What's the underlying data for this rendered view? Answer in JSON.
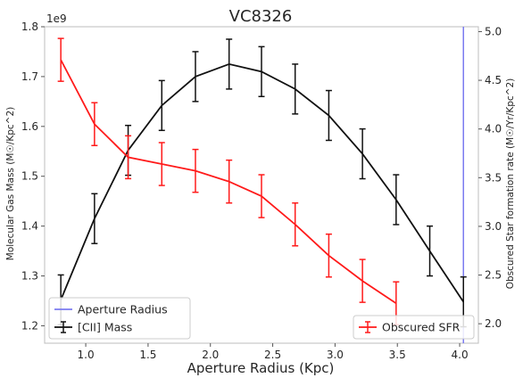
{
  "chart_data": {
    "type": "line",
    "title": "VC8326",
    "xlabel": "Aperture Radius (Kpc)",
    "ylabel_left": "Molecular Gas Mass (M☉/Kpc^2)",
    "ylabel_right": "Obscured Star formation rate (M☉/Yr/Kpc^2)",
    "offset_text": "1e9",
    "xlim": [
      0.67,
      4.15
    ],
    "ylim_left": [
      1.165,
      1.8
    ],
    "ylim_right": [
      1.8,
      5.05
    ],
    "grid": false,
    "x_ticks": [
      1.0,
      1.5,
      2.0,
      2.5,
      3.0,
      3.5,
      4.0
    ],
    "x_tick_labels": [
      "1.0",
      "1.5",
      "2.0",
      "2.5",
      "3.0",
      "3.5",
      "4.0"
    ],
    "y_left_ticks": [
      1.2,
      1.3,
      1.4,
      1.5,
      1.6,
      1.7,
      1.8
    ],
    "y_left_tick_labels": [
      "1.2",
      "1.3",
      "1.4",
      "1.5",
      "1.6",
      "1.7",
      "1.8"
    ],
    "y_right_ticks": [
      2.0,
      2.5,
      3.0,
      3.5,
      4.0,
      4.5,
      5.0
    ],
    "y_right_tick_labels": [
      "2.0",
      "2.5",
      "3.0",
      "3.5",
      "4.0",
      "4.5",
      "5.0"
    ],
    "series": [
      {
        "name": "[CII] Mass",
        "axis": "left",
        "color": "#111111",
        "x": [
          0.8,
          1.07,
          1.34,
          1.61,
          1.88,
          2.15,
          2.41,
          2.68,
          2.95,
          3.22,
          3.49,
          3.76,
          4.03
        ],
        "y": [
          1.252,
          1.415,
          1.552,
          1.642,
          1.7,
          1.725,
          1.71,
          1.675,
          1.622,
          1.545,
          1.453,
          1.35,
          1.248
        ],
        "err": [
          0.05,
          0.05,
          0.05,
          0.05,
          0.05,
          0.05,
          0.05,
          0.05,
          0.05,
          0.05,
          0.05,
          0.05,
          0.05
        ]
      },
      {
        "name": "Obscured SFR",
        "axis": "right",
        "color": "#ff1a1a",
        "x": [
          0.8,
          1.07,
          1.34,
          1.61,
          1.88,
          2.15,
          2.41,
          2.68,
          2.95,
          3.22,
          3.49
        ],
        "y": [
          4.71,
          4.05,
          3.71,
          3.64,
          3.57,
          3.46,
          3.31,
          3.02,
          2.7,
          2.44,
          2.21
        ],
        "err": [
          0.22,
          0.22,
          0.22,
          0.22,
          0.22,
          0.22,
          0.22,
          0.22,
          0.22,
          0.22,
          0.22
        ]
      }
    ],
    "vlines": [
      {
        "name": "Aperture Radius",
        "x": 4.03,
        "color": "#7b7bf0"
      }
    ],
    "legends": [
      {
        "placement": "lower-left",
        "entries": [
          "Aperture Radius",
          "[CII] Mass"
        ]
      },
      {
        "placement": "lower-right",
        "entries": [
          "Obscured SFR"
        ]
      }
    ]
  }
}
